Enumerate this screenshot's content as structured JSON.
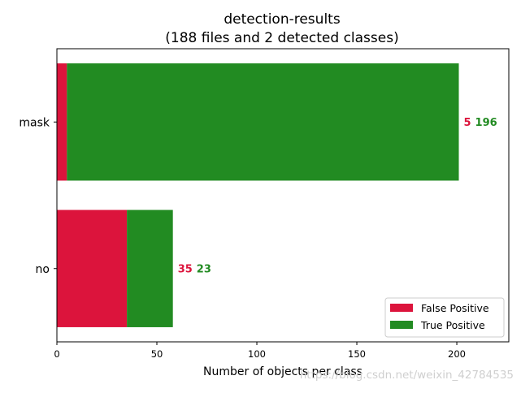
{
  "chart_data": {
    "type": "bar",
    "orientation": "horizontal",
    "stacked": true,
    "title_line1": "detection-results",
    "title_line2": "(188 files and 2 detected classes)",
    "xlabel": "Number of objects per class",
    "ylabel": "",
    "categories": [
      "mask",
      "no"
    ],
    "series": [
      {
        "name": "False Positive",
        "values": [
          5,
          35
        ],
        "color": "#dc143c"
      },
      {
        "name": "True Positive",
        "values": [
          196,
          23
        ],
        "color": "#228b22"
      }
    ],
    "xlim": [
      0,
      226
    ],
    "xticks": [
      0,
      50,
      100,
      150,
      200
    ],
    "grid": false,
    "legend_position": "lower-right"
  },
  "watermark": "https://blog.csdn.net/weixin_42784535"
}
